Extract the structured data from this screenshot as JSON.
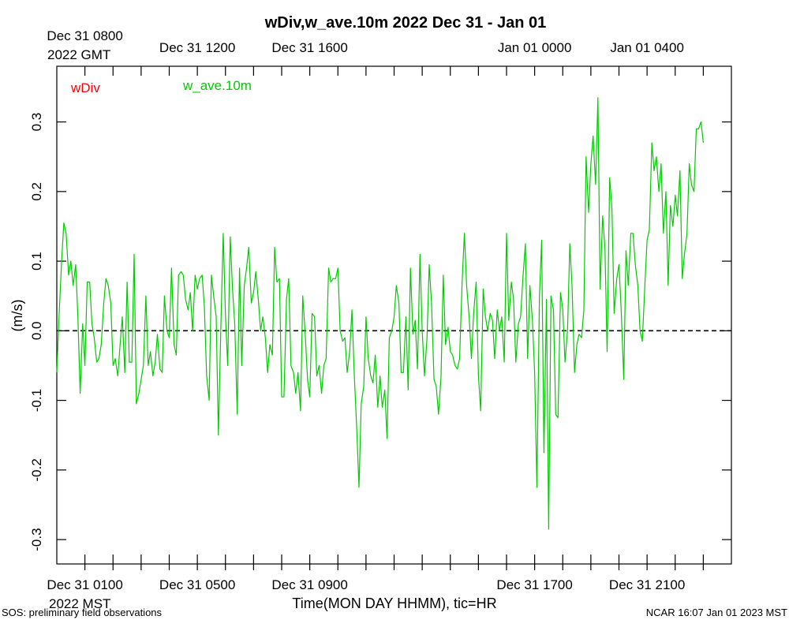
{
  "footer": {
    "left": "SOS: preliminary field observations",
    "right": "NCAR 16:07 Jan 01 2023 MST"
  },
  "chart_data": {
    "type": "line",
    "title": "wDiv,w_ave.10m 2022 Dec 31 - Jan 01",
    "ylabel": "(m/s)",
    "xlabel": "Time(MON DAY HHMM), tic=HR",
    "ylim": [
      -0.335,
      0.38
    ],
    "yticks": [
      -0.3,
      -0.2,
      -0.1,
      0.0,
      0.1,
      0.2,
      0.3
    ],
    "ytick_labels": [
      "-0.3",
      "-0.2",
      "-0.1",
      "0.0",
      "0.1",
      "0.2",
      "0.3"
    ],
    "x_unit": "hours since 2022 Dec 31 0000 MST",
    "xlim": [
      0.0,
      24.0
    ],
    "x_minor_ticks": [
      1,
      2,
      3,
      4,
      5,
      6,
      7,
      8,
      9,
      10,
      11,
      12,
      13,
      14,
      15,
      16,
      17,
      18,
      19,
      20,
      21,
      22,
      23
    ],
    "bottom_axis": {
      "labels": [
        {
          "x": 1,
          "text": "Dec 31 0100"
        },
        {
          "x": 5,
          "text": "Dec 31 0500"
        },
        {
          "x": 9,
          "text": "Dec 31 0900"
        },
        {
          "x": 17,
          "text": "Dec 31 1700"
        },
        {
          "x": 21,
          "text": "Dec 31 2100"
        }
      ],
      "sublabel": "2022 MST"
    },
    "top_axis": {
      "labels": [
        {
          "x": 1,
          "text": "Dec 31 0800"
        },
        {
          "x": 5,
          "text": "Dec 31 1200"
        },
        {
          "x": 9,
          "text": "Dec 31 1600"
        },
        {
          "x": 17,
          "text": "Jan 01 0000"
        },
        {
          "x": 21,
          "text": "Jan 01 0400"
        }
      ],
      "sublabel": "2022 GMT"
    },
    "zero_line": {
      "y": 0.0,
      "style": "dashed",
      "color": "#000000"
    },
    "legend_placement": "top-left",
    "series": [
      {
        "name": "wDiv",
        "color": "#ff0000",
        "values": []
      },
      {
        "name": "w_ave.10m",
        "color": "#00cc00",
        "values": [
          [
            0.0,
            -0.06
          ],
          [
            0.08,
            0.02
          ],
          [
            0.17,
            0.1
          ],
          [
            0.25,
            0.155
          ],
          [
            0.33,
            0.14
          ],
          [
            0.42,
            0.08
          ],
          [
            0.5,
            0.1
          ],
          [
            0.58,
            0.065
          ],
          [
            0.67,
            0.095
          ],
          [
            0.75,
            0.02
          ],
          [
            0.83,
            -0.09
          ],
          [
            0.92,
            0.01
          ],
          [
            1.0,
            -0.05
          ],
          [
            1.08,
            0.07
          ],
          [
            1.17,
            0.07
          ],
          [
            1.25,
            0.01
          ],
          [
            1.33,
            -0.01
          ],
          [
            1.42,
            -0.045
          ],
          [
            1.5,
            -0.04
          ],
          [
            1.58,
            -0.02
          ],
          [
            1.67,
            0.04
          ],
          [
            1.75,
            0.075
          ],
          [
            1.83,
            0.065
          ],
          [
            1.92,
            0.04
          ],
          [
            2.0,
            -0.05
          ],
          [
            2.08,
            -0.04
          ],
          [
            2.17,
            -0.065
          ],
          [
            2.25,
            -0.02
          ],
          [
            2.33,
            0.02
          ],
          [
            2.42,
            -0.06
          ],
          [
            2.5,
            0.07
          ],
          [
            2.58,
            -0.045
          ],
          [
            2.67,
            -0.045
          ],
          [
            2.75,
            0.11
          ],
          [
            2.83,
            -0.105
          ],
          [
            2.92,
            -0.09
          ],
          [
            3.0,
            -0.07
          ],
          [
            3.08,
            -0.05
          ],
          [
            3.17,
            0.05
          ],
          [
            3.25,
            -0.05
          ],
          [
            3.33,
            -0.03
          ],
          [
            3.42,
            -0.065
          ],
          [
            3.5,
            -0.045
          ],
          [
            3.58,
            -0.005
          ],
          [
            3.67,
            -0.055
          ],
          [
            3.75,
            -0.06
          ],
          [
            3.83,
            0.05
          ],
          [
            3.92,
            0.0
          ],
          [
            4.0,
            -0.01
          ],
          [
            4.08,
            0.09
          ],
          [
            4.17,
            -0.02
          ],
          [
            4.25,
            -0.035
          ],
          [
            4.33,
            0.08
          ],
          [
            4.42,
            0.085
          ],
          [
            4.5,
            0.08
          ],
          [
            4.58,
            0.045
          ],
          [
            4.67,
            0.03
          ],
          [
            4.75,
            0.055
          ],
          [
            4.83,
            0.0
          ],
          [
            4.92,
            0.08
          ],
          [
            5.0,
            0.06
          ],
          [
            5.08,
            0.075
          ],
          [
            5.17,
            0.08
          ],
          [
            5.25,
            0.035
          ],
          [
            5.33,
            -0.065
          ],
          [
            5.42,
            -0.1
          ],
          [
            5.5,
            0.08
          ],
          [
            5.58,
            0.05
          ],
          [
            5.67,
            0.02
          ],
          [
            5.75,
            -0.15
          ],
          [
            5.83,
            -0.005
          ],
          [
            5.92,
            0.14
          ],
          [
            6.0,
            0.02
          ],
          [
            6.08,
            -0.05
          ],
          [
            6.17,
            0.135
          ],
          [
            6.25,
            0.06
          ],
          [
            6.33,
            0.01
          ],
          [
            6.42,
            -0.12
          ],
          [
            6.5,
            0.09
          ],
          [
            6.58,
            -0.05
          ],
          [
            6.67,
            0.065
          ],
          [
            6.75,
            0.09
          ],
          [
            6.83,
            0.12
          ],
          [
            6.92,
            0.04
          ],
          [
            7.0,
            0.055
          ],
          [
            7.08,
            0.085
          ],
          [
            7.17,
            0.045
          ],
          [
            7.25,
            0.0
          ],
          [
            7.33,
            0.02
          ],
          [
            7.42,
            -0.01
          ],
          [
            7.5,
            -0.06
          ],
          [
            7.58,
            -0.02
          ],
          [
            7.67,
            -0.035
          ],
          [
            7.75,
            0.12
          ],
          [
            7.83,
            0.07
          ],
          [
            7.92,
            0.075
          ],
          [
            8.0,
            -0.095
          ],
          [
            8.08,
            -0.095
          ],
          [
            8.17,
            0.045
          ],
          [
            8.25,
            0.075
          ],
          [
            8.33,
            -0.05
          ],
          [
            8.42,
            -0.06
          ],
          [
            8.5,
            -0.09
          ],
          [
            8.58,
            -0.06
          ],
          [
            8.67,
            -0.115
          ],
          [
            8.75,
            0.05
          ],
          [
            8.83,
            0.0
          ],
          [
            8.92,
            -0.07
          ],
          [
            9.0,
            -0.095
          ],
          [
            9.08,
            0.025
          ],
          [
            9.17,
            0.02
          ],
          [
            9.25,
            -0.065
          ],
          [
            9.33,
            -0.05
          ],
          [
            9.42,
            -0.09
          ],
          [
            9.5,
            -0.05
          ],
          [
            9.58,
            -0.04
          ],
          [
            9.67,
            0.09
          ],
          [
            9.75,
            0.07
          ],
          [
            9.83,
            0.075
          ],
          [
            9.92,
            0.075
          ],
          [
            10.0,
            0.09
          ],
          [
            10.08,
            0.0
          ],
          [
            10.17,
            -0.015
          ],
          [
            10.25,
            -0.01
          ],
          [
            10.33,
            -0.06
          ],
          [
            10.42,
            -0.03
          ],
          [
            10.5,
            0.03
          ],
          [
            10.58,
            -0.06
          ],
          [
            10.67,
            -0.14
          ],
          [
            10.75,
            -0.225
          ],
          [
            10.83,
            -0.105
          ],
          [
            10.92,
            -0.08
          ],
          [
            11.0,
            0.02
          ],
          [
            11.08,
            -0.04
          ],
          [
            11.17,
            -0.065
          ],
          [
            11.25,
            -0.075
          ],
          [
            11.33,
            -0.035
          ],
          [
            11.42,
            -0.11
          ],
          [
            11.5,
            -0.065
          ],
          [
            11.58,
            -0.11
          ],
          [
            11.67,
            -0.085
          ],
          [
            11.75,
            -0.155
          ],
          [
            11.83,
            -0.01
          ],
          [
            11.92,
            0.0
          ],
          [
            12.0,
            0.02
          ],
          [
            12.08,
            0.065
          ],
          [
            12.17,
            0.04
          ],
          [
            12.25,
            -0.06
          ],
          [
            12.33,
            -0.06
          ],
          [
            12.42,
            0.02
          ],
          [
            12.5,
            -0.085
          ],
          [
            12.58,
            0.09
          ],
          [
            12.67,
            -0.005
          ],
          [
            12.75,
            0.015
          ],
          [
            12.83,
            -0.055
          ],
          [
            12.92,
            0.11
          ],
          [
            13.0,
            0.0
          ],
          [
            13.08,
            -0.065
          ],
          [
            13.17,
            -0.01
          ],
          [
            13.25,
            0.095
          ],
          [
            13.33,
            0.04
          ],
          [
            13.42,
            -0.07
          ],
          [
            13.5,
            -0.08
          ],
          [
            13.58,
            -0.12
          ],
          [
            13.67,
            -0.065
          ],
          [
            13.75,
            0.08
          ],
          [
            13.83,
            -0.02
          ],
          [
            13.92,
            0.005
          ],
          [
            14.0,
            -0.03
          ],
          [
            14.08,
            -0.035
          ],
          [
            14.17,
            -0.05
          ],
          [
            14.25,
            -0.055
          ],
          [
            14.33,
            -0.04
          ],
          [
            14.42,
            0.07
          ],
          [
            14.5,
            0.14
          ],
          [
            14.58,
            0.065
          ],
          [
            14.67,
            0.02
          ],
          [
            14.75,
            -0.04
          ],
          [
            14.83,
            0.025
          ],
          [
            14.92,
            0.07
          ],
          [
            15.0,
            -0.065
          ],
          [
            15.08,
            -0.115
          ],
          [
            15.17,
            0.06
          ],
          [
            15.25,
            0.02
          ],
          [
            15.33,
            0.0
          ],
          [
            15.42,
            0.025
          ],
          [
            15.5,
            0.015
          ],
          [
            15.58,
            -0.04
          ],
          [
            15.67,
            0.03
          ],
          [
            15.75,
            0.0
          ],
          [
            15.83,
            0.02
          ],
          [
            15.92,
            -0.045
          ],
          [
            16.0,
            0.14
          ],
          [
            16.08,
            0.015
          ],
          [
            16.17,
            0.07
          ],
          [
            16.25,
            0.045
          ],
          [
            16.33,
            -0.045
          ],
          [
            16.42,
            0.01
          ],
          [
            16.5,
            0.02
          ],
          [
            16.58,
            0.075
          ],
          [
            16.67,
            0.125
          ],
          [
            16.75,
            -0.04
          ],
          [
            16.83,
            0.065
          ],
          [
            16.92,
            0.015
          ],
          [
            17.0,
            -0.06
          ],
          [
            17.08,
            -0.225
          ],
          [
            17.17,
            0.05
          ],
          [
            17.25,
            0.13
          ],
          [
            17.33,
            -0.175
          ],
          [
            17.42,
            0.045
          ],
          [
            17.5,
            -0.285
          ],
          [
            17.58,
            0.05
          ],
          [
            17.67,
            0.03
          ],
          [
            17.75,
            -0.12
          ],
          [
            17.83,
            -0.125
          ],
          [
            17.92,
            0.055
          ],
          [
            18.0,
            0.03
          ],
          [
            18.08,
            -0.045
          ],
          [
            18.17,
            0.0
          ],
          [
            18.25,
            0.125
          ],
          [
            18.33,
            0.065
          ],
          [
            18.42,
            -0.06
          ],
          [
            18.5,
            -0.02
          ],
          [
            18.58,
            -0.005
          ],
          [
            18.67,
            -0.01
          ],
          [
            18.75,
            0.03
          ],
          [
            18.83,
            0.25
          ],
          [
            18.92,
            0.17
          ],
          [
            19.0,
            0.24
          ],
          [
            19.08,
            0.28
          ],
          [
            19.17,
            0.21
          ],
          [
            19.25,
            0.335
          ],
          [
            19.33,
            0.06
          ],
          [
            19.42,
            0.165
          ],
          [
            19.5,
            0.12
          ],
          [
            19.58,
            -0.03
          ],
          [
            19.67,
            0.22
          ],
          [
            19.75,
            0.175
          ],
          [
            19.83,
            0.025
          ],
          [
            19.92,
            0.075
          ],
          [
            20.0,
            0.095
          ],
          [
            20.08,
            0.03
          ],
          [
            20.17,
            -0.07
          ],
          [
            20.25,
            0.115
          ],
          [
            20.33,
            0.065
          ],
          [
            20.42,
            0.14
          ],
          [
            20.5,
            0.14
          ],
          [
            20.58,
            0.095
          ],
          [
            20.67,
            0.065
          ],
          [
            20.75,
            0.0
          ],
          [
            20.83,
            -0.015
          ],
          [
            20.92,
            0.065
          ],
          [
            21.0,
            0.13
          ],
          [
            21.08,
            0.145
          ],
          [
            21.17,
            0.27
          ],
          [
            21.25,
            0.23
          ],
          [
            21.33,
            0.25
          ],
          [
            21.42,
            0.2
          ],
          [
            21.5,
            0.24
          ],
          [
            21.58,
            0.14
          ],
          [
            21.67,
            0.2
          ],
          [
            21.75,
            0.065
          ],
          [
            21.83,
            0.18
          ],
          [
            21.92,
            0.15
          ],
          [
            22.0,
            0.195
          ],
          [
            22.08,
            0.165
          ],
          [
            22.17,
            0.23
          ],
          [
            22.25,
            0.075
          ],
          [
            22.33,
            0.11
          ],
          [
            22.42,
            0.14
          ],
          [
            22.5,
            0.24
          ],
          [
            22.58,
            0.21
          ],
          [
            22.67,
            0.2
          ],
          [
            22.75,
            0.29
          ],
          [
            22.83,
            0.29
          ],
          [
            22.92,
            0.3
          ],
          [
            23.0,
            0.27
          ]
        ]
      }
    ]
  }
}
